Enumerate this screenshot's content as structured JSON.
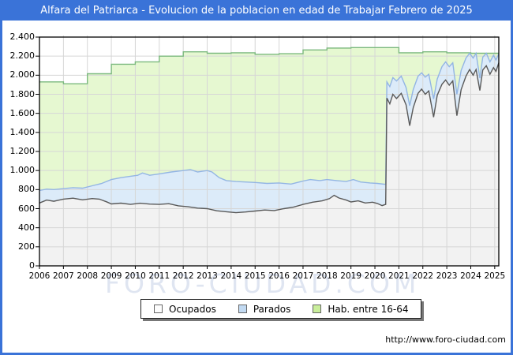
{
  "window": {
    "title": "Alfara del Patriarca - Evolucion de la poblacion en edad de Trabajar Febrero de 2025",
    "title_bar_color": "#3a73d8",
    "border_color": "#3a73d8"
  },
  "watermark": "FORO-CIUDAD.COM",
  "footer": {
    "url": "http://www.foro-ciudad.com"
  },
  "legend": {
    "position": "bottom",
    "items": [
      {
        "label": "Ocupados",
        "color": "#fdfdfd"
      },
      {
        "label": "Parados",
        "color": "#c2daf2"
      },
      {
        "label": "Hab. entre 16-64",
        "color": "#c9ee9b"
      }
    ]
  },
  "chart_data": {
    "type": "area",
    "title": "Alfara del Patriarca - Evolucion de la poblacion en edad de Trabajar Febrero de 2025",
    "xlabel": "",
    "ylabel": "",
    "grid": true,
    "grid_color": "#d6d6d6",
    "x_axis": {
      "range": [
        2006,
        2025.17
      ],
      "ticks": [
        2006,
        2007,
        2008,
        2009,
        2010,
        2011,
        2012,
        2013,
        2014,
        2015,
        2016,
        2017,
        2018,
        2019,
        2020,
        2021,
        2022,
        2023,
        2024,
        2025
      ]
    },
    "y_axis": {
      "range": [
        0,
        2400
      ],
      "ticks": [
        {
          "label": "0",
          "value": 0
        },
        {
          "label": "200",
          "value": 200
        },
        {
          "label": "400",
          "value": 400
        },
        {
          "label": "600",
          "value": 600
        },
        {
          "label": "800",
          "value": 800
        },
        {
          "label": "1.000",
          "value": 1000
        },
        {
          "label": "1.200",
          "value": 1200
        },
        {
          "label": "1.400",
          "value": 1400
        },
        {
          "label": "1.600",
          "value": 1600
        },
        {
          "label": "1.800",
          "value": 1800
        },
        {
          "label": "2.000",
          "value": 2000
        },
        {
          "label": "2.200",
          "value": 2200
        },
        {
          "label": "2.400",
          "value": 2400
        }
      ]
    },
    "series": [
      {
        "name": "Hab. entre 16-64",
        "step": true,
        "fill": "#e6f8d1",
        "stroke": "#7bb97e",
        "years": [
          2006,
          2007,
          2008,
          2009,
          2010,
          2011,
          2012,
          2013,
          2014,
          2015,
          2016,
          2017,
          2018,
          2019,
          2020,
          2021,
          2022,
          2023,
          2024,
          2025
        ],
        "values": [
          1930,
          1910,
          2015,
          2115,
          2140,
          2200,
          2245,
          2230,
          2235,
          2220,
          2225,
          2265,
          2285,
          2290,
          2290,
          2235,
          2245,
          2235,
          2230,
          2230
        ]
      },
      {
        "name": "Ocupados + Parados",
        "fill": "#dcebf9",
        "stroke": "#93b5e4",
        "points": [
          [
            2006.0,
            790
          ],
          [
            2006.3,
            805
          ],
          [
            2006.6,
            800
          ],
          [
            2007.0,
            810
          ],
          [
            2007.4,
            820
          ],
          [
            2007.8,
            815
          ],
          [
            2008.2,
            840
          ],
          [
            2008.6,
            865
          ],
          [
            2009.0,
            905
          ],
          [
            2009.4,
            925
          ],
          [
            2009.8,
            940
          ],
          [
            2010.1,
            950
          ],
          [
            2010.3,
            975
          ],
          [
            2010.6,
            950
          ],
          [
            2011.0,
            965
          ],
          [
            2011.5,
            985
          ],
          [
            2012.0,
            1000
          ],
          [
            2012.3,
            1010
          ],
          [
            2012.6,
            985
          ],
          [
            2013.0,
            1000
          ],
          [
            2013.2,
            985
          ],
          [
            2013.5,
            925
          ],
          [
            2013.8,
            895
          ],
          [
            2014.2,
            885
          ],
          [
            2014.6,
            880
          ],
          [
            2015.0,
            875
          ],
          [
            2015.5,
            865
          ],
          [
            2016.0,
            870
          ],
          [
            2016.5,
            858
          ],
          [
            2017.0,
            890
          ],
          [
            2017.3,
            905
          ],
          [
            2017.7,
            895
          ],
          [
            2018.0,
            905
          ],
          [
            2018.4,
            895
          ],
          [
            2018.8,
            885
          ],
          [
            2019.1,
            905
          ],
          [
            2019.4,
            880
          ],
          [
            2019.8,
            870
          ],
          [
            2020.1,
            865
          ],
          [
            2020.45,
            855
          ],
          [
            2020.5,
            1930
          ],
          [
            2020.62,
            1880
          ],
          [
            2020.75,
            1975
          ],
          [
            2020.9,
            1940
          ],
          [
            2021.1,
            1990
          ],
          [
            2021.3,
            1870
          ],
          [
            2021.45,
            1680
          ],
          [
            2021.6,
            1850
          ],
          [
            2021.8,
            1990
          ],
          [
            2021.95,
            2025
          ],
          [
            2022.1,
            1980
          ],
          [
            2022.25,
            2010
          ],
          [
            2022.45,
            1750
          ],
          [
            2022.6,
            1960
          ],
          [
            2022.8,
            2090
          ],
          [
            2022.95,
            2140
          ],
          [
            2023.1,
            2090
          ],
          [
            2023.25,
            2130
          ],
          [
            2023.42,
            1800
          ],
          [
            2023.6,
            2050
          ],
          [
            2023.8,
            2180
          ],
          [
            2023.95,
            2230
          ],
          [
            2024.1,
            2180
          ],
          [
            2024.22,
            2230
          ],
          [
            2024.38,
            1970
          ],
          [
            2024.5,
            2190
          ],
          [
            2024.65,
            2230
          ],
          [
            2024.8,
            2140
          ],
          [
            2024.95,
            2210
          ],
          [
            2025.05,
            2160
          ],
          [
            2025.17,
            2225
          ]
        ]
      },
      {
        "name": "Ocupados",
        "fill": "#f2f2f2",
        "stroke": "#595959",
        "points": [
          [
            2006.0,
            660
          ],
          [
            2006.3,
            690
          ],
          [
            2006.6,
            678
          ],
          [
            2007.0,
            700
          ],
          [
            2007.4,
            710
          ],
          [
            2007.8,
            693
          ],
          [
            2008.2,
            706
          ],
          [
            2008.5,
            700
          ],
          [
            2008.8,
            672
          ],
          [
            2009.0,
            650
          ],
          [
            2009.4,
            658
          ],
          [
            2009.8,
            645
          ],
          [
            2010.2,
            657
          ],
          [
            2010.6,
            648
          ],
          [
            2011.0,
            645
          ],
          [
            2011.4,
            652
          ],
          [
            2011.8,
            630
          ],
          [
            2012.2,
            620
          ],
          [
            2012.6,
            606
          ],
          [
            2013.0,
            600
          ],
          [
            2013.4,
            578
          ],
          [
            2013.8,
            568
          ],
          [
            2014.2,
            558
          ],
          [
            2014.6,
            565
          ],
          [
            2015.0,
            575
          ],
          [
            2015.4,
            586
          ],
          [
            2015.8,
            580
          ],
          [
            2016.2,
            600
          ],
          [
            2016.6,
            616
          ],
          [
            2017.0,
            645
          ],
          [
            2017.4,
            668
          ],
          [
            2017.8,
            682
          ],
          [
            2018.1,
            705
          ],
          [
            2018.3,
            740
          ],
          [
            2018.5,
            712
          ],
          [
            2018.8,
            690
          ],
          [
            2019.0,
            670
          ],
          [
            2019.3,
            682
          ],
          [
            2019.6,
            660
          ],
          [
            2019.9,
            668
          ],
          [
            2020.1,
            655
          ],
          [
            2020.3,
            632
          ],
          [
            2020.45,
            645
          ],
          [
            2020.5,
            1760
          ],
          [
            2020.62,
            1700
          ],
          [
            2020.75,
            1800
          ],
          [
            2020.9,
            1755
          ],
          [
            2021.1,
            1810
          ],
          [
            2021.3,
            1690
          ],
          [
            2021.45,
            1470
          ],
          [
            2021.6,
            1660
          ],
          [
            2021.8,
            1810
          ],
          [
            2021.95,
            1855
          ],
          [
            2022.1,
            1800
          ],
          [
            2022.25,
            1835
          ],
          [
            2022.45,
            1560
          ],
          [
            2022.6,
            1790
          ],
          [
            2022.8,
            1905
          ],
          [
            2022.95,
            1950
          ],
          [
            2023.1,
            1895
          ],
          [
            2023.25,
            1940
          ],
          [
            2023.42,
            1575
          ],
          [
            2023.6,
            1850
          ],
          [
            2023.8,
            1990
          ],
          [
            2023.95,
            2060
          ],
          [
            2024.1,
            2000
          ],
          [
            2024.22,
            2060
          ],
          [
            2024.38,
            1840
          ],
          [
            2024.5,
            2055
          ],
          [
            2024.65,
            2100
          ],
          [
            2024.8,
            2010
          ],
          [
            2024.95,
            2080
          ],
          [
            2025.05,
            2040
          ],
          [
            2025.17,
            2130
          ]
        ]
      }
    ]
  }
}
